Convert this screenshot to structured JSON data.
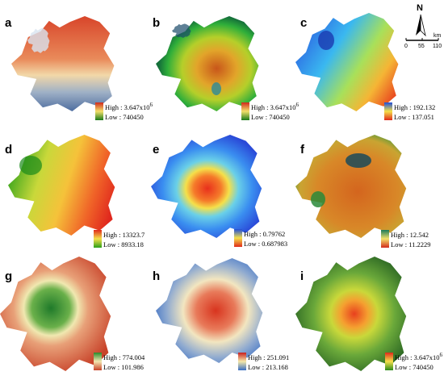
{
  "north": {
    "letter": "N",
    "unit": "km",
    "ticks": [
      "0",
      "55",
      "110"
    ]
  },
  "panels": [
    {
      "label": "a",
      "high": "High : 3.647x10",
      "high_exp": "6",
      "low": "Low : 740450",
      "scale": "green-red"
    },
    {
      "label": "b",
      "high": "High : 3.647x10",
      "high_exp": "6",
      "low": "Low : 740450",
      "scale": "green-red"
    },
    {
      "label": "c",
      "high": "High : 192.132",
      "high_exp": "",
      "low": "Low : 137.051",
      "scale": "blue-red"
    },
    {
      "label": "d",
      "high": "High : 13323.7",
      "high_exp": "",
      "low": "Low : 8933.18",
      "scale": "red-green"
    },
    {
      "label": "e",
      "high": "High : 0.79762",
      "high_exp": "",
      "low": "Low : 0.687983",
      "scale": "blue-red"
    },
    {
      "label": "f",
      "high": "High : 12.542",
      "high_exp": "",
      "low": "Low : 11.2229",
      "scale": "green-red"
    },
    {
      "label": "g",
      "high": "High : 774.004",
      "high_exp": "",
      "low": "Low : 101.986",
      "scale": "green-red"
    },
    {
      "label": "h",
      "high": "High : 251.091",
      "high_exp": "",
      "low": "Low : 213.168",
      "scale": "red-blue"
    },
    {
      "label": "i",
      "high": "High : 3.647x10",
      "high_exp": "6",
      "low": "Low : 740450",
      "scale": "red-green"
    }
  ]
}
